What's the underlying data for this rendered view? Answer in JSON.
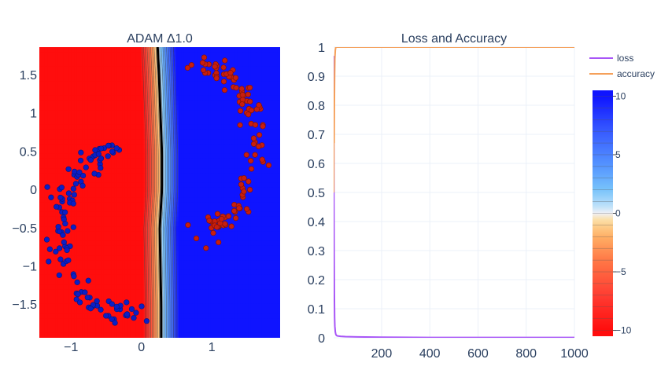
{
  "chart_data": [
    {
      "type": "heatmap",
      "title": "ADAM Δ1.0",
      "xlabel": "",
      "ylabel": "",
      "xlim": [
        -1.45,
        1.97
      ],
      "ylim": [
        -1.93,
        1.87
      ],
      "x_ticks": [
        -1,
        0,
        1
      ],
      "x_tick_labels": [
        "−1",
        "0",
        "1"
      ],
      "y_ticks": [
        -1.5,
        -1,
        -0.5,
        0,
        0.5,
        1,
        1.5
      ],
      "y_tick_labels": [
        "−1.5",
        "−1",
        "−0.5",
        "0",
        "0.5",
        "1",
        "1.5"
      ],
      "decision_boundary": {
        "ys": [
          -1.93,
          -1.5,
          -1.0,
          -0.5,
          0.0,
          0.5,
          1.0,
          1.5,
          1.87
        ],
        "xs": [
          0.28,
          0.28,
          0.27,
          0.26,
          0.29,
          0.29,
          0.27,
          0.25,
          0.23
        ],
        "transition_width": 0.5,
        "z_at_left": -10,
        "z_at_right": 10
      },
      "colorbar": {
        "ticks": [
          10,
          5,
          0,
          -5,
          -10
        ],
        "tick_labels": [
          "10",
          "5",
          "0",
          "−5",
          "−10"
        ],
        "range": [
          -10.5,
          10.5
        ]
      },
      "series": [
        {
          "name": "",
          "color": "#0b1fc7",
          "shape": "upper-left arc",
          "arc_center": [
            -0.3,
            -0.55
          ],
          "arc_radius_x": 0.85,
          "arc_radius_y": 1.05,
          "angle_range_deg": [
            90,
            280
          ],
          "count": 120,
          "noise": 0.08
        },
        {
          "name": "",
          "color": "#c81e0e",
          "shape": "right arc",
          "arc_center": [
            0.85,
            0.55
          ],
          "arc_radius_x": 0.75,
          "arc_radius_y": 1.05,
          "angle_range_deg": [
            -100,
            95
          ],
          "count": 120,
          "noise": 0.08
        }
      ]
    },
    {
      "type": "line",
      "title": "Loss and Accuracy",
      "xlabel": "",
      "ylabel": "",
      "xlim": [
        1,
        1000
      ],
      "ylim": [
        0,
        1
      ],
      "x_ticks": [
        200,
        400,
        600,
        800,
        1000
      ],
      "x_tick_labels": [
        "200",
        "400",
        "600",
        "800",
        "1000"
      ],
      "y_ticks": [
        0,
        0.1,
        0.2,
        0.3,
        0.4,
        0.5,
        0.6,
        0.7,
        0.8,
        0.9,
        1
      ],
      "y_tick_labels": [
        "0",
        "0.1",
        "0.2",
        "0.3",
        "0.4",
        "0.5",
        "0.6",
        "0.7",
        "0.8",
        "0.9",
        "1"
      ],
      "legend_position": "top-right",
      "series": [
        {
          "name": "loss",
          "color": "#a855f7",
          "x": [
            1,
            2,
            3,
            4,
            5,
            6,
            8,
            10,
            12,
            15,
            20,
            30,
            50,
            100,
            200,
            400,
            600,
            800,
            1000
          ],
          "y": [
            0.97,
            0.5,
            0.3,
            0.15,
            0.07,
            0.04,
            0.02,
            0.012,
            0.009,
            0.007,
            0.006,
            0.005,
            0.004,
            0.003,
            0.002,
            0.001,
            0.001,
            0.001,
            0.001
          ]
        },
        {
          "name": "accuracy",
          "color": "#f5a05a",
          "x": [
            1,
            2,
            3,
            4,
            5,
            6,
            8,
            10,
            1000
          ],
          "y": [
            0.5,
            0.72,
            0.67,
            0.8,
            0.9,
            0.96,
            0.99,
            1.0,
            1.0
          ]
        }
      ]
    }
  ]
}
